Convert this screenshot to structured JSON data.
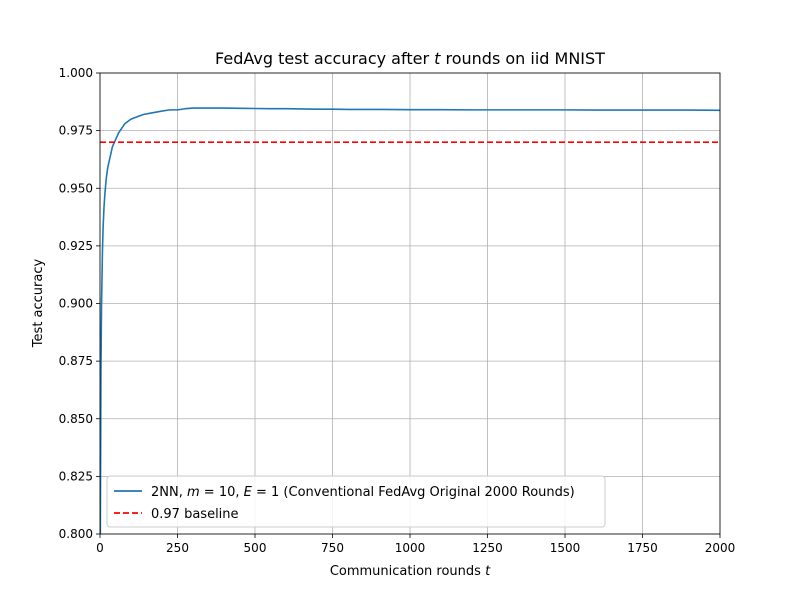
{
  "chart_data": {
    "type": "line",
    "title_parts": [
      "FedAvg test accuracy after ",
      "t",
      " rounds on iid MNIST"
    ],
    "xlabel_parts": [
      "Communication rounds ",
      "t"
    ],
    "ylabel": "Test accuracy",
    "xlim": [
      0,
      2000
    ],
    "ylim": [
      0.8,
      1.0
    ],
    "xticks": [
      0,
      250,
      500,
      750,
      1000,
      1250,
      1500,
      1750,
      2000
    ],
    "xtick_labels": [
      "0",
      "250",
      "500",
      "750",
      "1000",
      "1250",
      "1500",
      "1750",
      "2000"
    ],
    "yticks": [
      0.8,
      0.825,
      0.85,
      0.875,
      0.9,
      0.925,
      0.95,
      0.975,
      1.0
    ],
    "ytick_labels": [
      "0.800",
      "0.825",
      "0.850",
      "0.875",
      "0.900",
      "0.925",
      "0.950",
      "0.975",
      "1.000"
    ],
    "grid": true,
    "legend_position": "lower-left",
    "series": [
      {
        "name_parts": [
          "2NN, ",
          "m",
          " = 10, ",
          "E",
          " = 1 (Conventional FedAvg Original 2000 Rounds)"
        ],
        "color": "#1f77b4",
        "style": "solid",
        "x": [
          1,
          3,
          5,
          8,
          10,
          13,
          16,
          20,
          25,
          30,
          35,
          40,
          50,
          60,
          70,
          80,
          90,
          100,
          120,
          140,
          160,
          180,
          200,
          225,
          250,
          275,
          300,
          325,
          350,
          375,
          400,
          450,
          500,
          550,
          600,
          650,
          700,
          750,
          800,
          900,
          1000,
          1100,
          1200,
          1300,
          1400,
          1500,
          1600,
          1700,
          1800,
          1900,
          2000
        ],
        "y": [
          0.8,
          0.87,
          0.9,
          0.923,
          0.933,
          0.942,
          0.948,
          0.954,
          0.959,
          0.962,
          0.965,
          0.968,
          0.971,
          0.974,
          0.976,
          0.978,
          0.979,
          0.98,
          0.981,
          0.982,
          0.9825,
          0.983,
          0.9835,
          0.984,
          0.984,
          0.9845,
          0.9848,
          0.9848,
          0.9848,
          0.9848,
          0.9848,
          0.9847,
          0.9846,
          0.9845,
          0.9845,
          0.9844,
          0.9843,
          0.9843,
          0.9842,
          0.9842,
          0.9841,
          0.9841,
          0.984,
          0.984,
          0.984,
          0.984,
          0.9839,
          0.9839,
          0.9839,
          0.9839,
          0.9838
        ]
      },
      {
        "name": "0.97 baseline",
        "color": "#ff0000",
        "style": "dashed",
        "constant": 0.97
      }
    ]
  }
}
